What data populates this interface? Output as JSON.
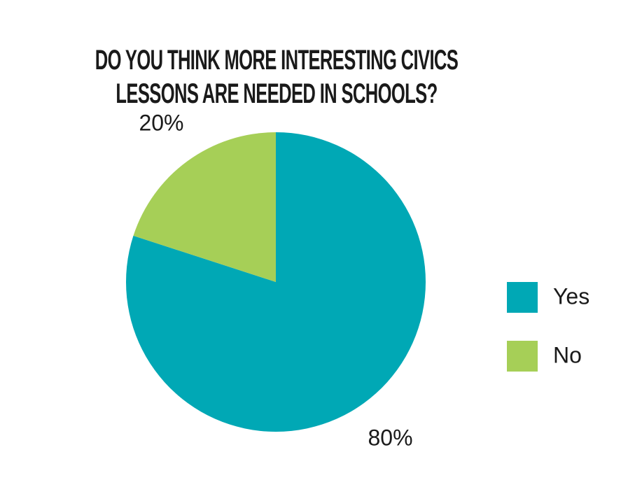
{
  "chart_data": {
    "type": "pie",
    "title": "DO YOU THINK MORE INTERESTING CIVICS LESSONS ARE NEEDED IN SCHOOLS?",
    "categories": [
      "Yes",
      "No"
    ],
    "values": [
      80,
      20
    ],
    "value_labels": [
      "80%",
      "20%"
    ],
    "colors": [
      "#00a8b5",
      "#a6cf57"
    ],
    "legend": "right"
  }
}
